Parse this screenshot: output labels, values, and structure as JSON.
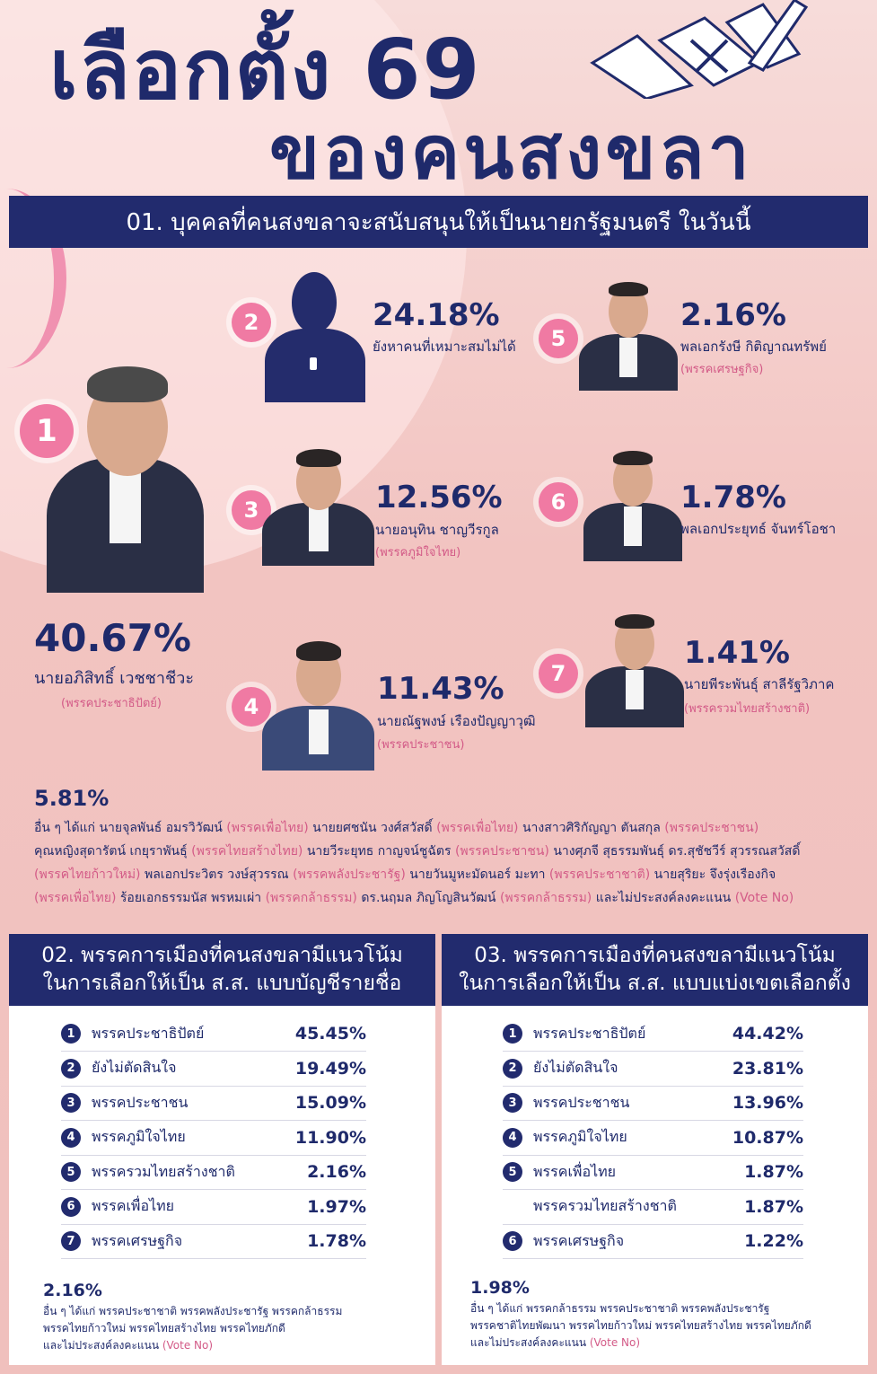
{
  "title": {
    "line1": "เลือกตั้ง 69",
    "line2": "ของคนสงขลา"
  },
  "section1": {
    "heading": "01. บุคคลที่คนสงขลาจะสนับสนุนให้เป็นนายกรัฐมนตรี ในวันนี้",
    "candidates": [
      {
        "rank": "1",
        "pct": "40.67%",
        "name": "นายอภิสิทธิ์ เวชชาชีวะ",
        "party": "(พรรคประชาธิปัตย์)"
      },
      {
        "rank": "2",
        "pct": "24.18%",
        "name": "ยังหาคนที่เหมาะสมไม่ได้",
        "party": ""
      },
      {
        "rank": "3",
        "pct": "12.56%",
        "name": "นายอนุทิน ชาญวีรกูล",
        "party": "(พรรคภูมิใจไทย)"
      },
      {
        "rank": "4",
        "pct": "11.43%",
        "name": "นายณัฐพงษ์ เรืองปัญญาวุฒิ",
        "party": "(พรรคประชาชน)"
      },
      {
        "rank": "5",
        "pct": "2.16%",
        "name": "พลเอกรังษี กิติญาณทรัพย์",
        "party": "(พรรคเศรษฐกิจ)"
      },
      {
        "rank": "6",
        "pct": "1.78%",
        "name": "พลเอกประยุทธ์ จันทร์โอชา",
        "party": ""
      },
      {
        "rank": "7",
        "pct": "1.41%",
        "name": "นายพีระพันธุ์ สาลีรัฐวิภาค",
        "party": "(พรรครวมไทยสร้างชาติ)"
      }
    ],
    "others": {
      "pct": "5.81%",
      "lines": [
        [
          {
            "t": "อื่น ๆ ได้แก่ นายจุลพันธ์ อมรวิวัฒน์ ",
            "p": false
          },
          {
            "t": "(พรรคเพื่อไทย)",
            "p": true
          },
          {
            "t": " นายยศชนัน วงศ์สวัสดิ์ ",
            "p": false
          },
          {
            "t": "(พรรคเพื่อไทย)",
            "p": true
          },
          {
            "t": " นางสาวศิริกัญญา ตันสกุล ",
            "p": false
          },
          {
            "t": "(พรรคประชาชน)",
            "p": true
          }
        ],
        [
          {
            "t": "คุณหญิงสุดารัตน์ เกยุราพันธุ์ ",
            "p": false
          },
          {
            "t": "(พรรคไทยสร้างไทย)",
            "p": true
          },
          {
            "t": " นายวีระยุทธ กาญจน์ชูฉัตร ",
            "p": false
          },
          {
            "t": "(พรรคประชาชน)",
            "p": true
          },
          {
            "t": " นางศุภจี สุธรรมพันธุ์ ดร.สุชัชวีร์ สุวรรณสวัสดิ์",
            "p": false
          }
        ],
        [
          {
            "t": "(พรรคไทยก้าวใหม่)",
            "p": true
          },
          {
            "t": " พลเอกประวิตร วงษ์สุวรรณ ",
            "p": false
          },
          {
            "t": "(พรรคพลังประชารัฐ)",
            "p": true
          },
          {
            "t": " นายวันมูหะมัดนอร์ มะทา ",
            "p": false
          },
          {
            "t": "(พรรคประชาชาติ)",
            "p": true
          },
          {
            "t": " นายสุริยะ จึงรุ่งเรืองกิจ",
            "p": false
          }
        ],
        [
          {
            "t": "(พรรคเพื่อไทย)",
            "p": true
          },
          {
            "t": " ร้อยเอกธรรมนัส พรหมเผ่า ",
            "p": false
          },
          {
            "t": "(พรรคกล้าธรรม)",
            "p": true
          },
          {
            "t": " ดร.นฤมล ภิญโญสินวัฒน์ ",
            "p": false
          },
          {
            "t": "(พรรคกล้าธรรม)",
            "p": true
          },
          {
            "t": " และไม่ประสงค์ลงคะแนน ",
            "p": false
          },
          {
            "t": "(Vote No)",
            "p": true
          }
        ]
      ]
    }
  },
  "section2": {
    "heading_line1": "02. พรรคการเมืองที่คนสงขลามีแนวโน้ม",
    "heading_line2": "ในการเลือกให้เป็น ส.ส. แบบบัญชีรายชื่อ",
    "rows": [
      {
        "num": "1",
        "label": "พรรคประชาธิปัตย์",
        "value": "45.45%"
      },
      {
        "num": "2",
        "label": "ยังไม่ตัดสินใจ",
        "value": "19.49%"
      },
      {
        "num": "3",
        "label": "พรรคประชาชน",
        "value": "15.09%"
      },
      {
        "num": "4",
        "label": "พรรคภูมิใจไทย",
        "value": "11.90%"
      },
      {
        "num": "5",
        "label": "พรรครวมไทยสร้างชาติ",
        "value": "2.16%"
      },
      {
        "num": "6",
        "label": "พรรคเพื่อไทย",
        "value": "1.97%"
      },
      {
        "num": "7",
        "label": "พรรคเศรษฐกิจ",
        "value": "1.78%"
      }
    ],
    "others_pct": "2.16%",
    "others_line1": "อื่น ๆ ได้แก่ พรรคประชาชาติ พรรคพลังประชารัฐ พรรคกล้าธรรม",
    "others_line2": "พรรคไทยก้าวใหม่ พรรคไทยสร้างไทย พรรคไทยภักดี",
    "others_line3": "และไม่ประสงค์ลงคะแนน ",
    "vote_no": "(Vote No)"
  },
  "section3": {
    "heading_line1": "03. พรรคการเมืองที่คนสงขลามีแนวโน้ม",
    "heading_line2": "ในการเลือกให้เป็น ส.ส. แบบแบ่งเขตเลือกตั้ง",
    "rows": [
      {
        "num": "1",
        "label": "พรรคประชาธิปัตย์",
        "value": "44.42%"
      },
      {
        "num": "2",
        "label": "ยังไม่ตัดสินใจ",
        "value": "23.81%"
      },
      {
        "num": "3",
        "label": "พรรคประชาชน",
        "value": "13.96%"
      },
      {
        "num": "4",
        "label": "พรรคภูมิใจไทย",
        "value": "10.87%"
      },
      {
        "num": "5",
        "label": "พรรคเพื่อไทย",
        "value": "1.87%"
      },
      {
        "num": "",
        "label": "พรรครวมไทยสร้างชาติ",
        "value": "1.87%"
      },
      {
        "num": "6",
        "label": "พรรคเศรษฐกิจ",
        "value": "1.22%"
      }
    ],
    "others_pct": "1.98%",
    "others_line1": "อื่น ๆ ได้แก่ พรรคกล้าธรรม พรรคประชาชาติ พรรคพลังประชารัฐ",
    "others_line2": "พรรคชาติไทยพัฒนา พรรคไทยก้าวใหม่ พรรคไทยสร้างไทย พรรคไทยภักดี",
    "others_line3": "และไม่ประสงค์ลงคะแนน ",
    "vote_no": "(Vote No)"
  }
}
